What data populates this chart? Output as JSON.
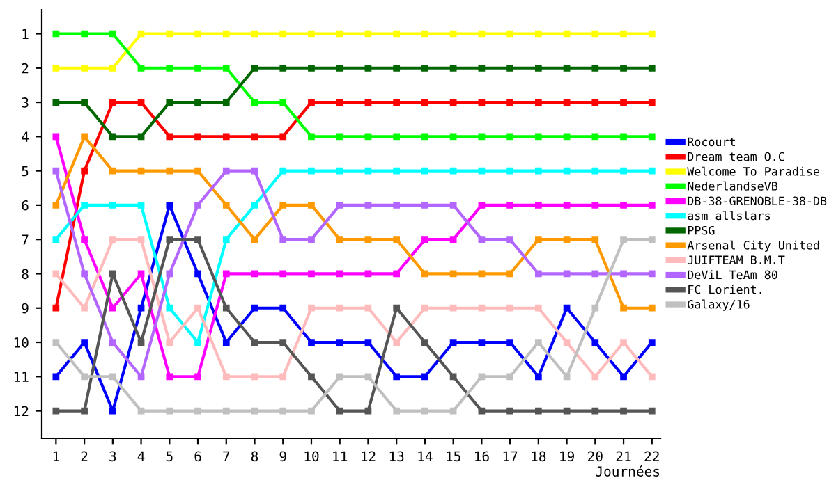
{
  "chart_data": {
    "type": "line",
    "xlabel": "Journées",
    "x": [
      1,
      2,
      3,
      4,
      5,
      6,
      7,
      8,
      9,
      10,
      11,
      12,
      13,
      14,
      15,
      16,
      17,
      18,
      19,
      20,
      21,
      22
    ],
    "xlim": [
      0.5,
      22.3
    ],
    "xticks": [
      1,
      2,
      3,
      4,
      5,
      6,
      7,
      8,
      9,
      10,
      11,
      12,
      13,
      14,
      15,
      16,
      17,
      18,
      19,
      20,
      21,
      22
    ],
    "ylim": [
      12.8,
      0.3
    ],
    "yticks": [
      1,
      2,
      3,
      4,
      5,
      6,
      7,
      8,
      9,
      10,
      11,
      12
    ],
    "grid": false,
    "legend": "right",
    "marker": "square",
    "line_style": "solid",
    "series": [
      {
        "name": "Rocourt",
        "color": "#0000ff",
        "values": [
          11,
          10,
          12,
          9,
          6,
          8,
          10,
          9,
          9,
          10,
          10,
          10,
          11,
          11,
          10,
          10,
          10,
          11,
          9,
          10,
          11,
          10
        ]
      },
      {
        "name": "Dream team O.C",
        "color": "#ff0000",
        "values": [
          9,
          5,
          3,
          3,
          4,
          4,
          4,
          4,
          4,
          3,
          3,
          3,
          3,
          3,
          3,
          3,
          3,
          3,
          3,
          3,
          3,
          3
        ]
      },
      {
        "name": "Welcome To Paradise",
        "color": "#ffff00",
        "values": [
          2,
          2,
          2,
          1,
          1,
          1,
          1,
          1,
          1,
          1,
          1,
          1,
          1,
          1,
          1,
          1,
          1,
          1,
          1,
          1,
          1,
          1
        ]
      },
      {
        "name": "NederlandseVB",
        "color": "#00ff00",
        "values": [
          1,
          1,
          1,
          2,
          2,
          2,
          2,
          3,
          3,
          4,
          4,
          4,
          4,
          4,
          4,
          4,
          4,
          4,
          4,
          4,
          4,
          4
        ]
      },
      {
        "name": "DB-38-GRENOBLE-38-DB",
        "color": "#ff00ff",
        "values": [
          4,
          7,
          9,
          8,
          11,
          11,
          8,
          8,
          8,
          8,
          8,
          8,
          8,
          7,
          7,
          6,
          6,
          6,
          6,
          6,
          6,
          6
        ]
      },
      {
        "name": "asm allstars",
        "color": "#00ffff",
        "values": [
          7,
          6,
          6,
          6,
          9,
          10,
          7,
          6,
          5,
          5,
          5,
          5,
          5,
          5,
          5,
          5,
          5,
          5,
          5,
          5,
          5,
          5
        ]
      },
      {
        "name": "PPSG",
        "color": "#006600",
        "values": [
          3,
          3,
          4,
          4,
          3,
          3,
          3,
          2,
          2,
          2,
          2,
          2,
          2,
          2,
          2,
          2,
          2,
          2,
          2,
          2,
          2,
          2
        ]
      },
      {
        "name": "Arsenal City United",
        "color": "#ff9900",
        "values": [
          6,
          4,
          5,
          5,
          5,
          5,
          6,
          7,
          6,
          6,
          7,
          7,
          7,
          8,
          8,
          8,
          8,
          7,
          7,
          7,
          9,
          9
        ]
      },
      {
        "name": "JUIFTEAM B.M.T",
        "color": "#ffbbbb",
        "values": [
          8,
          9,
          7,
          7,
          10,
          9,
          11,
          11,
          11,
          9,
          9,
          9,
          10,
          9,
          9,
          9,
          9,
          9,
          10,
          11,
          10,
          11
        ]
      },
      {
        "name": "DeViL TeAm 80",
        "color": "#b266ff",
        "values": [
          5,
          8,
          10,
          11,
          8,
          6,
          5,
          5,
          7,
          7,
          6,
          6,
          6,
          6,
          6,
          7,
          7,
          8,
          8,
          8,
          8,
          8
        ]
      },
      {
        "name": "FC Lorient.",
        "color": "#555555",
        "values": [
          12,
          12,
          8,
          10,
          7,
          7,
          9,
          10,
          10,
          11,
          12,
          12,
          9,
          10,
          11,
          12,
          12,
          12,
          12,
          12,
          12,
          12
        ]
      },
      {
        "name": "Galaxy/16",
        "color": "#c0c0c0",
        "values": [
          10,
          11,
          11,
          12,
          12,
          12,
          12,
          12,
          12,
          12,
          11,
          11,
          12,
          12,
          12,
          11,
          11,
          10,
          11,
          9,
          7,
          7
        ]
      }
    ]
  }
}
